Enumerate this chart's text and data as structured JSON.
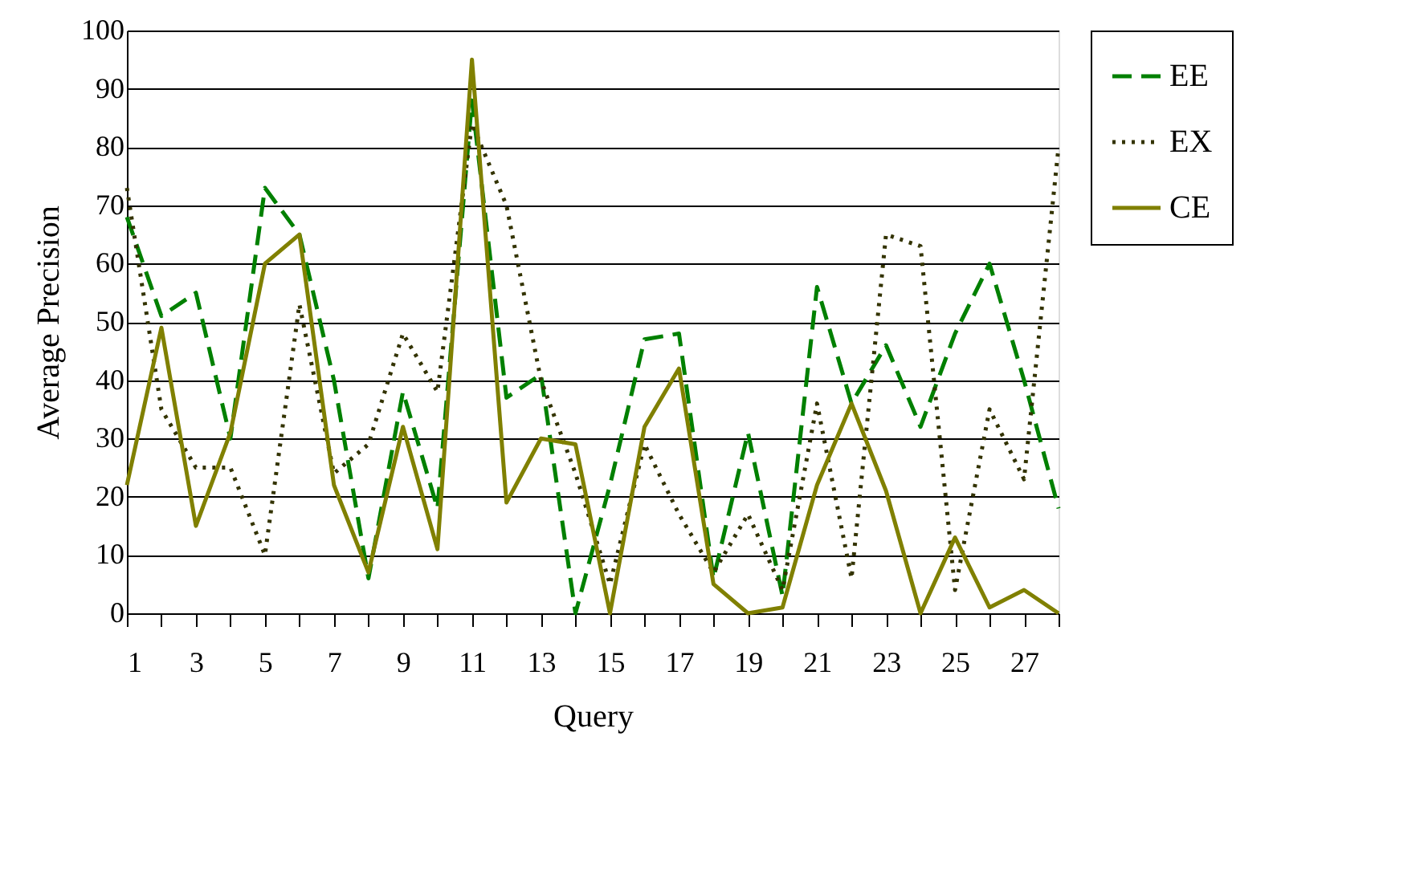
{
  "chart_data": {
    "type": "line",
    "xlabel": "Query",
    "ylabel": "Average Precision",
    "x": [
      1,
      2,
      3,
      4,
      5,
      6,
      7,
      8,
      9,
      10,
      11,
      12,
      13,
      14,
      15,
      16,
      17,
      18,
      19,
      20,
      21,
      22,
      23,
      24,
      25,
      26,
      27,
      28
    ],
    "xlim": [
      1,
      28
    ],
    "xticks": [
      1,
      {
        "value": 2,
        "label": null
      },
      3,
      {
        "value": 4,
        "label": null
      },
      5,
      {
        "value": 6,
        "label": null
      },
      7,
      {
        "value": 8,
        "label": null
      },
      9,
      {
        "value": 10,
        "label": null
      },
      11,
      {
        "value": 12,
        "label": null
      },
      13,
      {
        "value": 14,
        "label": null
      },
      15,
      {
        "value": 16,
        "label": null
      },
      17,
      {
        "value": 18,
        "label": null
      },
      19,
      {
        "value": 20,
        "label": null
      },
      21,
      {
        "value": 22,
        "label": null
      },
      23,
      {
        "value": 24,
        "label": null
      },
      25,
      {
        "value": 26,
        "label": null
      },
      27,
      {
        "value": 28,
        "label": null
      }
    ],
    "ylim": [
      0,
      100
    ],
    "yticks": [
      0,
      10,
      20,
      30,
      40,
      50,
      60,
      70,
      80,
      90,
      100
    ],
    "grid": "y",
    "legend": "top right",
    "marker": "none",
    "series": [
      {
        "name": "EE",
        "color": "#008000",
        "line_style": "dashed",
        "values": [
          68,
          51,
          55,
          30,
          73,
          65,
          40,
          6,
          38,
          18,
          88,
          37,
          41,
          0,
          22,
          47,
          48,
          6,
          31,
          3,
          56,
          36,
          46,
          32,
          48,
          60,
          40,
          18
        ]
      },
      {
        "name": "EX",
        "color": "#333300",
        "line_style": "dotted",
        "values": [
          73,
          35,
          25,
          25,
          10,
          53,
          24,
          29,
          48,
          38,
          84,
          70,
          40,
          24,
          5,
          29,
          17,
          7,
          17,
          4,
          36,
          6,
          65,
          63,
          4,
          35,
          23,
          80
        ]
      },
      {
        "name": "CE",
        "color": "#808000",
        "line_style": "solid",
        "values": [
          22,
          49,
          15,
          31,
          60,
          65,
          22,
          7,
          32,
          11,
          95,
          19,
          30,
          29,
          0,
          32,
          42,
          5,
          0,
          1,
          22,
          36,
          21,
          0,
          13,
          1,
          4,
          0
        ]
      }
    ]
  }
}
